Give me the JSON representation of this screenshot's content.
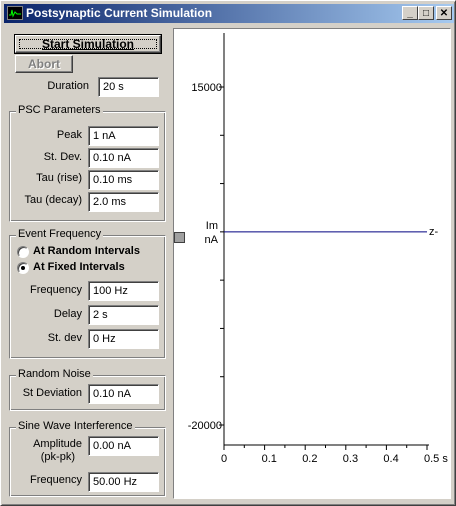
{
  "window": {
    "title": "Postsynaptic Current Simulation",
    "min_glyph": "_",
    "max_glyph": "□",
    "close_glyph": "✕"
  },
  "controls": {
    "start_label": "Start Simulation",
    "abort_label": "Abort",
    "duration_label": "Duration",
    "duration_value": "20 s"
  },
  "psc": {
    "title": "PSC Parameters",
    "peak_label": "Peak",
    "peak_value": "1 nA",
    "stdev_label": "St. Dev.",
    "stdev_value": "0.10 nA",
    "tau_rise_label": "Tau (rise)",
    "tau_rise_value": "0.10 ms",
    "tau_decay_label": "Tau (decay)",
    "tau_decay_value": "2.0 ms"
  },
  "event": {
    "title": "Event Frequency",
    "random_label": "At Random Intervals",
    "fixed_label": "At Fixed Intervals",
    "selected": "fixed",
    "frequency_label": "Frequency",
    "frequency_value": "100 Hz",
    "delay_label": "Delay",
    "delay_value": "2 s",
    "stdev_label": "St. dev",
    "stdev_value": "0 Hz"
  },
  "noise": {
    "title": "Random Noise",
    "stdev_label": "St Deviation",
    "stdev_value": "0.10 nA"
  },
  "sine": {
    "title": "Sine Wave Interference",
    "amplitude_label": "Amplitude",
    "amplitude_sub": "(pk-pk)",
    "amplitude_value": "0.00 nA",
    "frequency_label": "Frequency",
    "frequency_value": "50.00 Hz"
  },
  "chart_data": {
    "type": "line",
    "y_label_top": "Im",
    "y_label_bottom": "nA",
    "y_ticks": [
      {
        "value": 15000,
        "label": "15000"
      },
      {
        "value": -20000,
        "label": "-20000"
      }
    ],
    "ylim": [
      -20000,
      15000
    ],
    "x_ticks": [
      {
        "value": 0,
        "label": "0"
      },
      {
        "value": 0.1,
        "label": "0.1"
      },
      {
        "value": 0.2,
        "label": "0.2"
      },
      {
        "value": 0.3,
        "label": "0.3"
      },
      {
        "value": 0.4,
        "label": "0.4"
      },
      {
        "value": 0.5,
        "label": "0.5 s"
      }
    ],
    "xlim": [
      0,
      0.5
    ],
    "series": [
      {
        "x": [
          0,
          0.5
        ],
        "y": [
          0,
          0
        ],
        "color": "#000080"
      }
    ],
    "trace_marker": "z-"
  }
}
